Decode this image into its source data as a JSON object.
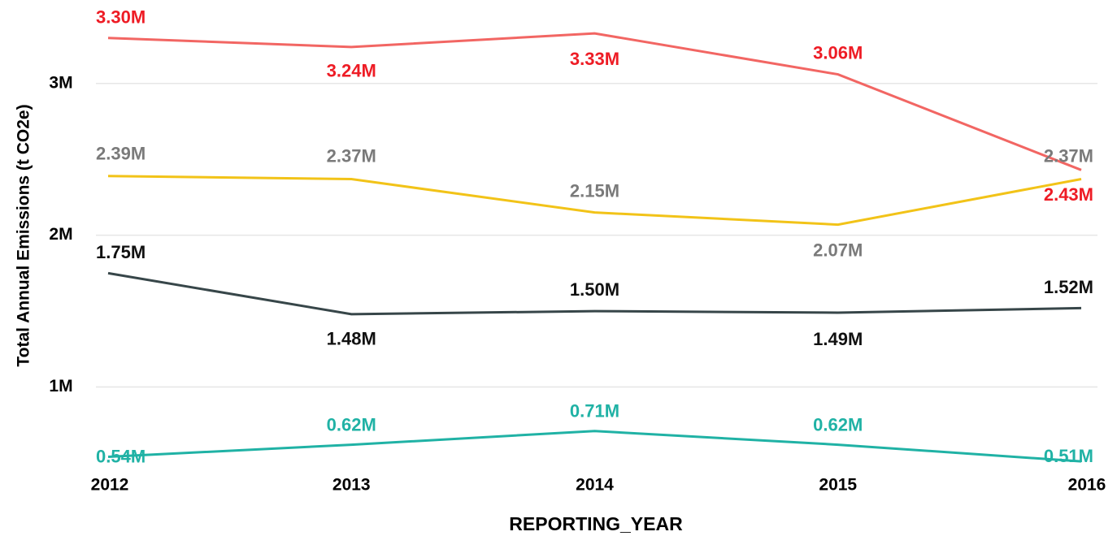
{
  "chart_data": {
    "type": "line",
    "x_label": "REPORTING_YEAR",
    "y_label": "Total Annual Emissions (t CO2e)",
    "x": [
      2012,
      2013,
      2014,
      2015,
      2016
    ],
    "xlim": [
      2012,
      2016
    ],
    "xticks": [
      2012,
      2013,
      2014,
      2015,
      2016
    ],
    "ylim": [
      500000,
      3550000
    ],
    "yticks": [
      {
        "value": 1000000,
        "label": "1M"
      },
      {
        "value": 2000000,
        "label": "2M"
      },
      {
        "value": 3000000,
        "label": "3M"
      }
    ],
    "grid": true,
    "series": [
      {
        "color": "#f26663",
        "label_color": "#ee1c25",
        "values": [
          3300000,
          3240000,
          3330000,
          3060000,
          2430000
        ],
        "value_labels": [
          "3.30M",
          "3.24M",
          "3.33M",
          "3.06M",
          "2.43M"
        ]
      },
      {
        "color": "#f2c318",
        "label_color": "#7a7a7a",
        "values": [
          2390000,
          2370000,
          2150000,
          2070000,
          2370000
        ],
        "value_labels": [
          "2.39M",
          "2.37M",
          "2.15M",
          "2.07M",
          "2.37M"
        ]
      },
      {
        "color": "#374649",
        "label_color": "#111111",
        "values": [
          1750000,
          1480000,
          1500000,
          1490000,
          1520000
        ],
        "value_labels": [
          "1.75M",
          "1.48M",
          "1.50M",
          "1.49M",
          "1.52M"
        ]
      },
      {
        "color": "#20b2a5",
        "label_color": "#20b2a5",
        "values": [
          540000,
          620000,
          710000,
          620000,
          510000
        ],
        "value_labels": [
          "0.54M",
          "0.62M",
          "0.71M",
          "0.62M",
          "0.51M"
        ]
      }
    ]
  }
}
